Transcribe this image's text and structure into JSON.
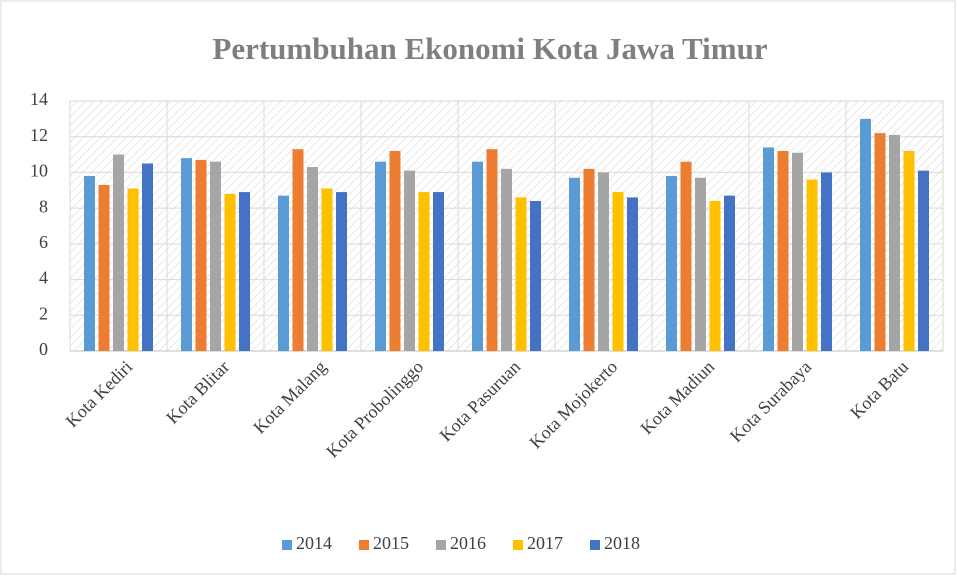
{
  "chart_data": {
    "type": "bar",
    "title": "Pertumbuhan Ekonomi Kota Jawa Timur",
    "categories": [
      "Kota Kediri",
      "Kota Blitar",
      "Kota Malang",
      "Kota Probolinggo",
      "Kota Pasuruan",
      "Kota Mojokerto",
      "Kota Madiun",
      "Kota Surabaya",
      "Kota Batu"
    ],
    "series": [
      {
        "name": "2014",
        "color": "#5b9bd5",
        "values": [
          9.8,
          10.8,
          8.7,
          10.6,
          10.6,
          9.7,
          9.8,
          11.4,
          13.0
        ]
      },
      {
        "name": "2015",
        "color": "#ed7d31",
        "values": [
          9.3,
          10.7,
          11.3,
          11.2,
          11.3,
          10.2,
          10.6,
          11.2,
          12.2
        ]
      },
      {
        "name": "2016",
        "color": "#a5a5a5",
        "values": [
          11.0,
          10.6,
          10.3,
          10.1,
          10.2,
          10.0,
          9.7,
          11.1,
          12.1
        ]
      },
      {
        "name": "2017",
        "color": "#ffc000",
        "values": [
          9.1,
          8.8,
          9.1,
          8.9,
          8.6,
          8.9,
          8.4,
          9.6,
          11.2
        ]
      },
      {
        "name": "2018",
        "color": "#4472c4",
        "values": [
          10.5,
          8.9,
          8.9,
          8.9,
          8.4,
          8.6,
          8.7,
          10.0,
          10.1
        ]
      }
    ],
    "ylim": [
      0,
      14
    ],
    "yticks": [
      0,
      2,
      4,
      6,
      8,
      10,
      12,
      14
    ],
    "grid": true,
    "legend": "bottom"
  }
}
